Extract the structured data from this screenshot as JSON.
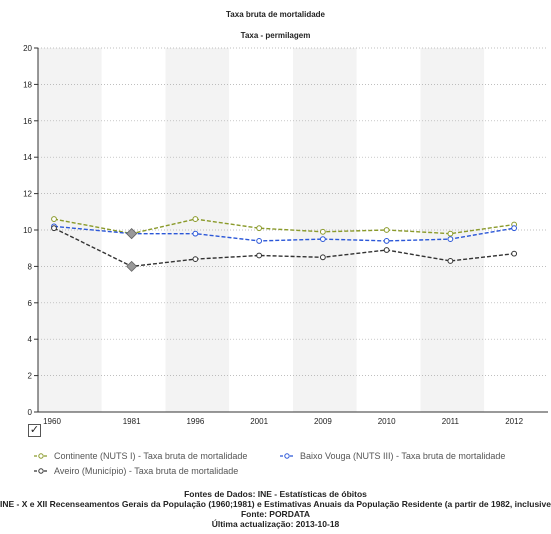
{
  "chart_data": {
    "type": "line",
    "title": "Taxa bruta de mortalidade",
    "subtitle": "Taxa - permilagem",
    "categories": [
      "1960",
      "1981",
      "1996",
      "2001",
      "2009",
      "2010",
      "2011",
      "2012"
    ],
    "ylim": [
      0,
      20
    ],
    "yticks": [
      0,
      2,
      4,
      6,
      8,
      10,
      12,
      14,
      16,
      18,
      20
    ],
    "grid": true,
    "legend_position": "bottom",
    "series": [
      {
        "name": "Continente (NUTS I) - Taxa bruta de mortalidade",
        "color": "#8a9a2a",
        "dashed": true,
        "values": [
          10.6,
          9.8,
          10.6,
          10.1,
          9.9,
          10.0,
          9.8,
          10.3
        ]
      },
      {
        "name": "Baixo Vouga (NUTS III) - Taxa bruta de mortalidade",
        "color": "#2b57d8",
        "dashed": true,
        "values": [
          10.2,
          9.8,
          9.8,
          9.4,
          9.5,
          9.4,
          9.5,
          10.1
        ]
      },
      {
        "name": "Aveiro (Município) - Taxa bruta de mortalidade",
        "color": "#333333",
        "dashed": true,
        "values": [
          10.1,
          8.0,
          8.4,
          8.6,
          8.5,
          8.9,
          8.3,
          8.7
        ]
      }
    ]
  },
  "checkbox_mark": "✓",
  "footer": {
    "line1": "Fontes de Dados: INE - Estatísticas de óbitos",
    "line2": "INE - X e XII Recenseamentos Gerais da População (1960;1981) e Estimativas Anuais da População Residente (a partir de 1982, inclusive)",
    "line3": "Fonte: PORDATA",
    "line4": "Última actualização: 2013-10-18"
  }
}
